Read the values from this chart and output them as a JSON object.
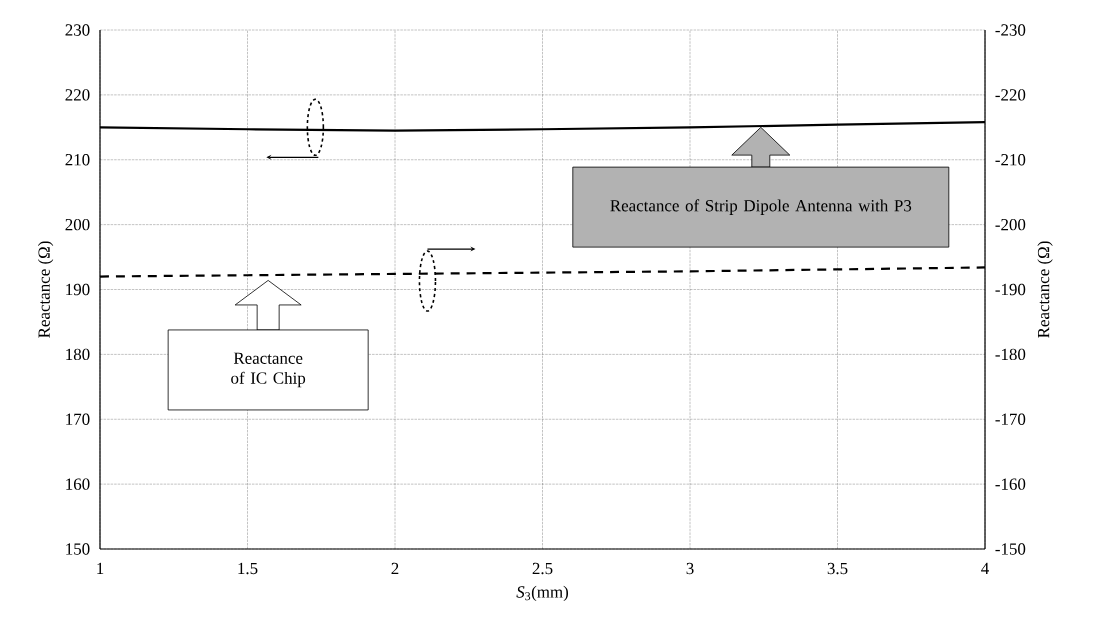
{
  "chart_data": {
    "type": "line",
    "xlabel": "*S*$_{3}$(mm)",
    "ylabel": "Reactance (Ω)",
    "y2label": "Reactance (Ω)",
    "x": [
      1,
      1.5,
      2,
      2.5,
      3,
      3.5,
      4
    ],
    "series": [
      {
        "color": "#000000",
        "line_style": "solid",
        "values": [
          215.0,
          214.7,
          214.5,
          214.7,
          215.0,
          215.4,
          215.8
        ]
      },
      {
        "color": "#000000",
        "line_style": "dashed",
        "axis": "y2",
        "values": [
          -192.0,
          -192.2,
          -192.4,
          -192.6,
          -192.8,
          -193.1,
          -193.4
        ]
      }
    ],
    "xlim": [
      1,
      4
    ],
    "xticks": [
      1,
      1.5,
      2,
      2.5,
      3,
      3.5,
      4
    ],
    "ylim": [
      150,
      230
    ],
    "yticks": [
      150,
      160,
      170,
      180,
      190,
      200,
      210,
      220,
      230
    ],
    "y2lim": [
      -150,
      -230
    ],
    "y2ticks": [
      -150,
      -160,
      -170,
      -180,
      -190,
      -200,
      -210,
      -220,
      -230
    ],
    "grid": true,
    "marker": "none",
    "annotations": [
      "Reactance of Strip Dipole Antenna with P3",
      "Reactance of IC Chip"
    ]
  }
}
